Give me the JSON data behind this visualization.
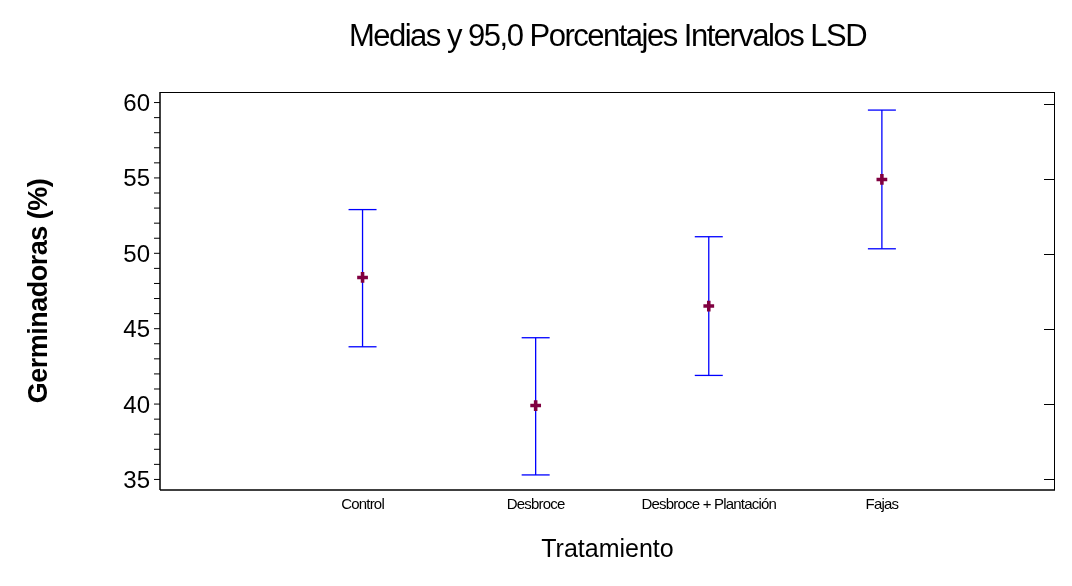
{
  "chart_data": {
    "type": "scatter",
    "title": "Medias y 95,0 Porcentajes Intervalos LSD",
    "xlabel": "Tratamiento",
    "ylabel": "Germinadoras (%)",
    "categories": [
      "Control",
      "Desbroce",
      "Desbroce + Plantación",
      "Fajas"
    ],
    "series": [
      {
        "color": "#800040",
        "values": [
          48.4,
          39.9,
          46.5,
          54.9
        ],
        "errors": [
          [
            43.8,
            52.9
          ],
          [
            35.3,
            44.4
          ],
          [
            41.9,
            51.1
          ],
          [
            50.3,
            59.5
          ]
        ]
      }
    ],
    "marker": "cross",
    "ylim": [
      34.3,
      60.7
    ],
    "yticks": [
      35,
      {
        "value": 36,
        "label": null
      },
      {
        "value": 37,
        "label": null
      },
      {
        "value": 38,
        "label": null
      },
      {
        "value": 39,
        "label": null
      },
      40,
      {
        "value": 41,
        "label": null
      },
      {
        "value": 42,
        "label": null
      },
      {
        "value": 43,
        "label": null
      },
      {
        "value": 44,
        "label": null
      },
      45,
      {
        "value": 46,
        "label": null
      },
      {
        "value": 47,
        "label": null
      },
      {
        "value": 48,
        "label": null
      },
      {
        "value": 49,
        "label": null
      },
      50,
      {
        "value": 51,
        "label": null
      },
      {
        "value": 52,
        "label": null
      },
      {
        "value": 53,
        "label": null
      },
      {
        "value": 54,
        "label": null
      },
      55,
      {
        "value": 56,
        "label": null
      },
      {
        "value": 57,
        "label": null
      },
      {
        "value": 58,
        "label": null
      },
      {
        "value": 59,
        "label": null
      },
      60
    ],
    "grid": false,
    "legend": false
  }
}
